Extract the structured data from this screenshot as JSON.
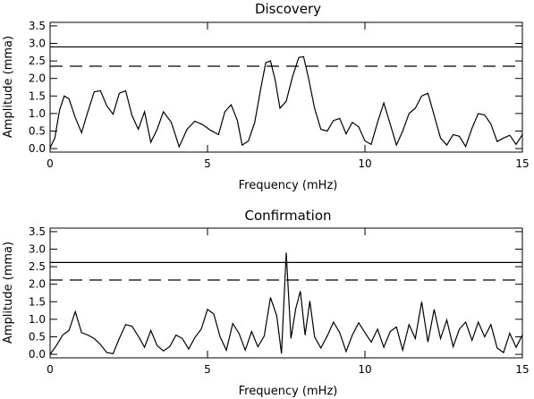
{
  "chart_data": [
    {
      "type": "line",
      "title": "Discovery",
      "xlabel": "Frequency (mHz)",
      "ylabel": "Amplitude (mma)",
      "xlim": [
        0,
        15
      ],
      "ylim": [
        -0.1,
        3.6
      ],
      "xticks": [
        "0",
        "5",
        "10",
        "15"
      ],
      "yticks": [
        "0.0",
        "0.5",
        "1.0",
        "1.5",
        "2.0",
        "2.5",
        "3.0",
        "3.5"
      ],
      "hlines": [
        {
          "style": "solid",
          "y": 2.9
        },
        {
          "style": "dashed",
          "y": 2.35
        }
      ],
      "series": [
        {
          "x": [
            0.0,
            0.15,
            0.3,
            0.45,
            0.6,
            0.8,
            1.0,
            1.2,
            1.4,
            1.6,
            1.8,
            2.0,
            2.2,
            2.4,
            2.6,
            2.8,
            3.0,
            3.2,
            3.4,
            3.6,
            3.85,
            4.1,
            4.35,
            4.6,
            4.85,
            5.1,
            5.35,
            5.55,
            5.75,
            5.95,
            6.1,
            6.3,
            6.5,
            6.7,
            6.85,
            7.0,
            7.15,
            7.3,
            7.5,
            7.7,
            7.9,
            8.05,
            8.2,
            8.4,
            8.6,
            8.8,
            9.0,
            9.2,
            9.4,
            9.6,
            9.8,
            10.0,
            10.2,
            10.4,
            10.6,
            10.8,
            11.0,
            11.2,
            11.4,
            11.6,
            11.8,
            12.0,
            12.2,
            12.4,
            12.6,
            12.8,
            13.0,
            13.2,
            13.4,
            13.6,
            13.8,
            14.0,
            14.2,
            14.4,
            14.6,
            14.8,
            15.0
          ],
          "values": [
            0.02,
            0.3,
            1.1,
            1.5,
            1.42,
            0.88,
            0.45,
            1.05,
            1.62,
            1.65,
            1.22,
            0.98,
            1.58,
            1.65,
            0.95,
            0.55,
            1.05,
            0.18,
            0.55,
            1.05,
            0.75,
            0.05,
            0.55,
            0.78,
            0.68,
            0.52,
            0.4,
            1.05,
            1.25,
            0.8,
            0.1,
            0.22,
            0.75,
            1.75,
            2.45,
            2.5,
            1.95,
            1.15,
            1.35,
            2.05,
            2.6,
            2.62,
            2.05,
            1.15,
            0.55,
            0.5,
            0.8,
            0.86,
            0.42,
            0.75,
            0.62,
            0.22,
            0.12,
            0.75,
            1.3,
            0.7,
            0.1,
            0.5,
            1.0,
            1.15,
            1.5,
            1.58,
            0.95,
            0.3,
            0.1,
            0.4,
            0.35,
            0.06,
            0.58,
            1.0,
            0.96,
            0.7,
            0.2,
            0.3,
            0.38,
            0.12,
            0.4
          ]
        }
      ]
    },
    {
      "type": "line",
      "title": "Confirmation",
      "xlabel": "Frequency (mHz)",
      "ylabel": "Amplitude (mma)",
      "xlim": [
        0,
        15
      ],
      "ylim": [
        -0.1,
        3.6
      ],
      "xticks": [
        "0",
        "5",
        "10",
        "15"
      ],
      "yticks": [
        "0.0",
        "0.5",
        "1.0",
        "1.5",
        "2.0",
        "2.5",
        "3.0",
        "3.5"
      ],
      "hlines": [
        {
          "style": "solid",
          "y": 2.62
        },
        {
          "style": "dashed",
          "y": 2.12
        }
      ],
      "series": [
        {
          "x": [
            0.0,
            0.2,
            0.4,
            0.6,
            0.8,
            1.0,
            1.2,
            1.4,
            1.6,
            1.8,
            2.0,
            2.2,
            2.4,
            2.6,
            2.8,
            3.0,
            3.2,
            3.4,
            3.6,
            3.8,
            4.0,
            4.2,
            4.4,
            4.6,
            4.8,
            5.0,
            5.2,
            5.4,
            5.6,
            5.8,
            6.0,
            6.2,
            6.4,
            6.6,
            6.8,
            7.0,
            7.2,
            7.35,
            7.5,
            7.65,
            7.8,
            7.95,
            8.1,
            8.25,
            8.4,
            8.6,
            8.8,
            9.0,
            9.2,
            9.4,
            9.6,
            9.8,
            10.0,
            10.2,
            10.4,
            10.6,
            10.8,
            11.0,
            11.2,
            11.4,
            11.6,
            11.8,
            12.0,
            12.2,
            12.4,
            12.6,
            12.8,
            13.0,
            13.2,
            13.4,
            13.6,
            13.8,
            14.0,
            14.2,
            14.4,
            14.6,
            14.8,
            15.0
          ],
          "values": [
            0.0,
            0.25,
            0.55,
            0.68,
            1.22,
            0.62,
            0.55,
            0.45,
            0.28,
            0.05,
            0.02,
            0.45,
            0.85,
            0.8,
            0.52,
            0.2,
            0.68,
            0.25,
            0.1,
            0.22,
            0.55,
            0.45,
            0.15,
            0.48,
            0.72,
            1.28,
            1.15,
            0.5,
            0.12,
            0.88,
            0.6,
            0.12,
            0.65,
            0.22,
            0.52,
            1.62,
            1.1,
            0.02,
            2.9,
            0.45,
            1.3,
            1.8,
            0.55,
            1.52,
            0.5,
            0.18,
            0.52,
            0.92,
            0.62,
            0.08,
            0.55,
            0.9,
            0.62,
            0.35,
            0.72,
            0.2,
            0.65,
            0.78,
            0.12,
            0.85,
            0.45,
            1.5,
            0.35,
            1.28,
            0.45,
            0.98,
            0.22,
            0.72,
            0.92,
            0.4,
            0.92,
            0.5,
            0.85,
            0.18,
            0.05,
            0.6,
            0.2,
            0.55
          ]
        }
      ]
    }
  ]
}
